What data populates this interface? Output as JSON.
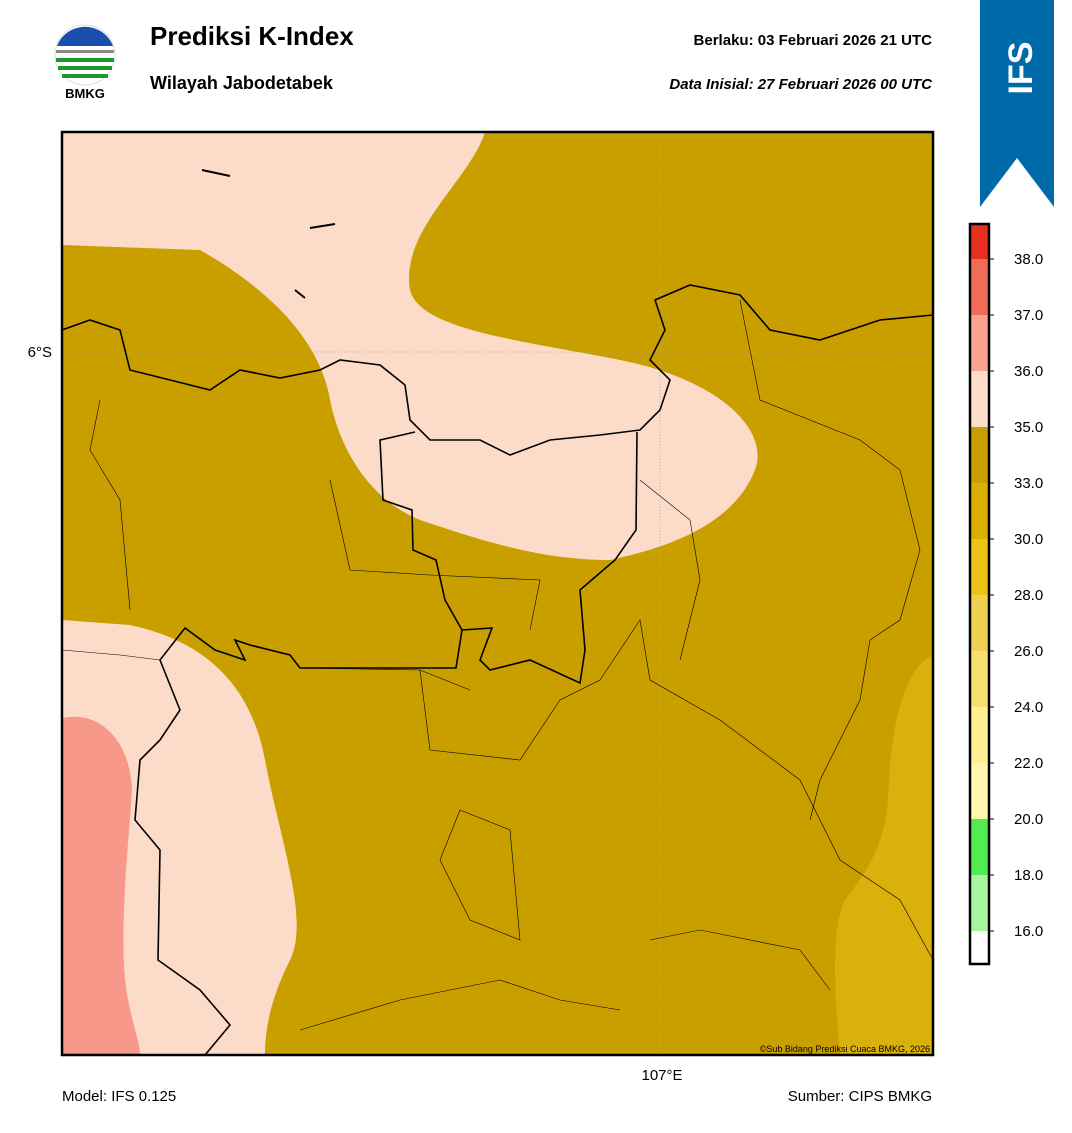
{
  "header": {
    "logo_text": "BMKG",
    "title": "Prediksi K-Index",
    "subtitle": "Wilayah Jabodetabek",
    "valid_label": "Berlaku:  03 Februari 2026 21 UTC",
    "init_label": "Data Inisial:  27 Februari 2026 00 UTC",
    "model_badge": "IFS"
  },
  "map": {
    "lat_label": "6°S",
    "lon_label": "107°E",
    "credit": "©Sub Bidang Prediksi Cuaca BMKG, 2026"
  },
  "colorbar": {
    "labels": [
      "16.0",
      "18.0",
      "20.0",
      "22.0",
      "24.0",
      "26.0",
      "28.0",
      "30.0",
      "33.0",
      "35.0",
      "36.0",
      "37.0",
      "38.0"
    ],
    "colors": [
      "#ffffff",
      "#a8f5a0",
      "#50ec50",
      "#fff6b0",
      "#fff092",
      "#f8e070",
      "#f0d050",
      "#ecc416",
      "#dcae00",
      "#c89e00",
      "#fedccc",
      "#f8a290",
      "#f06c58",
      "#e8301e"
    ]
  },
  "footer": {
    "model": "Model: IFS 0.125",
    "source": "Sumber: CIPS BMKG"
  }
}
